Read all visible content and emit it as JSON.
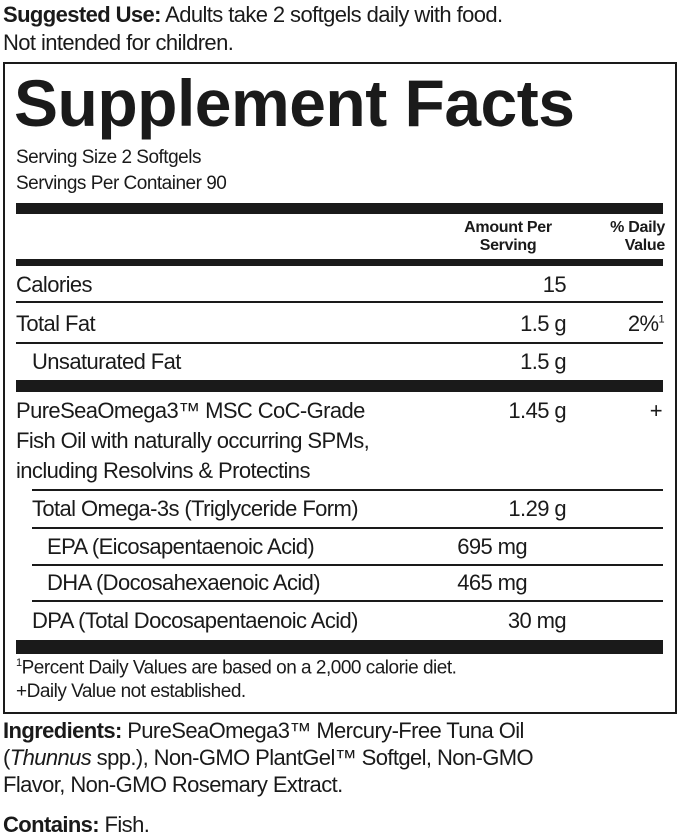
{
  "suggested_use": {
    "label": "Suggested Use:",
    "text_line1": " Adults take 2 softgels daily with food.",
    "text_line2": "Not intended for children."
  },
  "panel": {
    "title": "Supplement Facts",
    "serving_size": "Serving Size 2 Softgels",
    "servings_per_container": "Servings Per Container 90",
    "header": {
      "amount_line1": "Amount Per",
      "amount_line2": "Serving",
      "dv_line1": "% Daily",
      "dv_line2": "Value"
    },
    "rows": [
      {
        "name": "Calories",
        "amount": "15",
        "dv": ""
      },
      {
        "name": "Total Fat",
        "amount": "1.5 g",
        "dv": "2%",
        "dv_sup": "1"
      },
      {
        "name": "Unsaturated Fat",
        "amount": "1.5 g",
        "dv": ""
      },
      {
        "name_line1": "PureSeaOmega3™ MSC CoC-Grade",
        "name_line2": "Fish Oil with naturally occurring SPMs,",
        "name_line3": "including Resolvins & Protectins",
        "amount": "1.45 g",
        "dv": "+"
      },
      {
        "name": "Total Omega-3s (Triglyceride Form)",
        "amount": "1.29 g"
      },
      {
        "name": "EPA (Eicosapentaenoic Acid)",
        "amount": "695 mg"
      },
      {
        "name": "DHA (Docosahexaenoic Acid)",
        "amount": "465 mg"
      },
      {
        "name": "DPA (Total Docosapentaenoic Acid)",
        "amount": "30 mg"
      }
    ],
    "footnote1_sup": "1",
    "footnote1": "Percent Daily Values are based on a 2,000 calorie diet.",
    "footnote2": "+Daily Value not established."
  },
  "ingredients": {
    "label": "Ingredients:",
    "line1": " PureSeaOmega3™ Mercury-Free Tuna Oil",
    "line2_italic": "Thunnus",
    "line2_rest": " spp.), Non-GMO PlantGel™ Softgel, Non-GMO",
    "line2_open": "(",
    "line3": "Flavor, Non-GMO Rosemary Extract."
  },
  "contains": {
    "label": "Contains:",
    "text": " Fish."
  }
}
